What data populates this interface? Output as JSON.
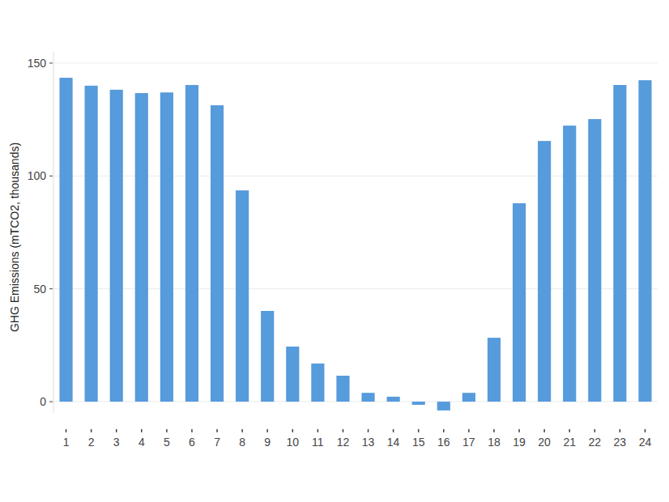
{
  "chart_data": {
    "type": "bar",
    "y_label": "GHG Emissions (mTCO2, thousands)",
    "categories": [
      "1",
      "2",
      "3",
      "4",
      "5",
      "6",
      "7",
      "8",
      "9",
      "10",
      "11",
      "12",
      "13",
      "14",
      "15",
      "16",
      "17",
      "18",
      "19",
      "20",
      "21",
      "22",
      "23",
      "24"
    ],
    "values": [
      143.5,
      140,
      138.2,
      136.7,
      137,
      140.3,
      131.3,
      93.6,
      40.2,
      24.4,
      16.9,
      11.5,
      3.9,
      2.2,
      -1.4,
      -3.9,
      3.9,
      28.3,
      87.9,
      115.5,
      122.3,
      125.2,
      140.3,
      142.4
    ],
    "color": "#569bdb",
    "ylim": [
      -5,
      155
    ],
    "yticks": [
      0,
      50,
      100,
      150
    ],
    "grid": true
  }
}
